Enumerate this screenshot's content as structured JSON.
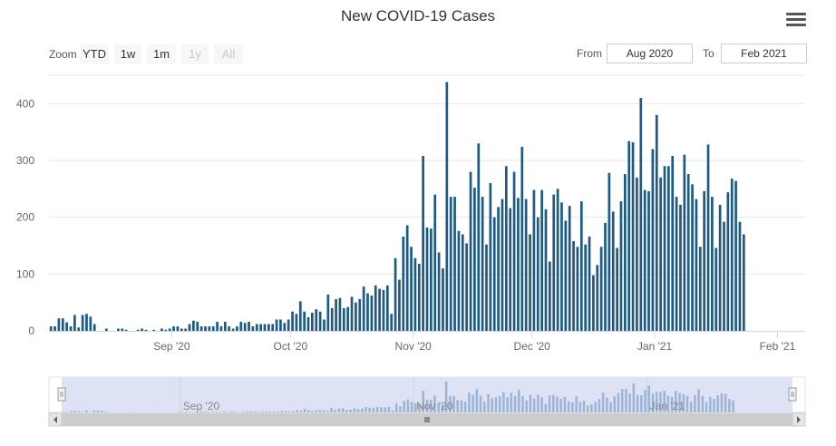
{
  "chart_data": {
    "type": "bar",
    "title": "New COVID-19 Cases",
    "x_start": "2020-08-01",
    "x_end": "2021-02-08",
    "ylim": [
      0,
      450
    ],
    "y_ticks": [
      0,
      100,
      200,
      300,
      400
    ],
    "x_ticks": [
      {
        "label": "Sep '20",
        "date": "2020-09-01"
      },
      {
        "label": "Oct '20",
        "date": "2020-10-01"
      },
      {
        "label": "Nov '20",
        "date": "2020-11-01"
      },
      {
        "label": "Dec '20",
        "date": "2020-12-01"
      },
      {
        "label": "Jan '21",
        "date": "2021-01-01"
      },
      {
        "label": "Feb '21",
        "date": "2021-02-01"
      }
    ],
    "grid": true,
    "series": [
      {
        "color": "#1f5a84",
        "values": [
          8,
          8,
          22,
          22,
          15,
          8,
          28,
          6,
          28,
          30,
          25,
          12,
          0,
          0,
          4,
          0,
          0,
          4,
          4,
          2,
          0,
          0,
          2,
          4,
          2,
          0,
          2,
          0,
          4,
          2,
          4,
          8,
          8,
          4,
          4,
          12,
          18,
          16,
          8,
          8,
          8,
          8,
          16,
          8,
          16,
          8,
          4,
          8,
          16,
          14,
          16,
          8,
          12,
          12,
          12,
          12,
          12,
          20,
          20,
          14,
          20,
          34,
          30,
          52,
          34,
          24,
          32,
          38,
          34,
          20,
          64,
          40,
          56,
          58,
          40,
          42,
          60,
          50,
          56,
          78,
          66,
          62,
          80,
          74,
          72,
          80,
          30,
          128,
          90,
          166,
          186,
          148,
          128,
          118,
          308,
          182,
          180,
          240,
          138,
          110,
          438,
          236,
          236,
          176,
          170,
          154,
          280,
          252,
          330,
          236,
          152,
          260,
          200,
          218,
          232,
          290,
          216,
          280,
          234,
          324,
          232,
          170,
          248,
          200,
          248,
          214,
          122,
          240,
          250,
          226,
          194,
          220,
          158,
          148,
          228,
          152,
          166,
          98,
          116,
          148,
          190,
          278,
          210,
          146,
          228,
          276,
          334,
          332,
          270,
          410,
          248,
          246,
          320,
          380,
          270,
          290,
          290,
          308,
          236,
          222,
          310,
          276,
          258,
          232,
          148,
          246,
          328,
          236,
          146,
          222,
          192,
          244,
          268,
          264,
          192,
          170
        ]
      }
    ]
  },
  "toolbar": {
    "zoom_label": "Zoom",
    "buttons": [
      {
        "label": "YTD",
        "enabled": true
      },
      {
        "label": "1w",
        "enabled": true
      },
      {
        "label": "1m",
        "enabled": true
      },
      {
        "label": "1y",
        "enabled": false
      },
      {
        "label": "All",
        "enabled": false
      }
    ],
    "from_label": "From",
    "from_value": "Aug 2020",
    "to_label": "To",
    "to_value": "Feb 2021"
  },
  "navigator": {
    "x_ticks": [
      "Sep '20",
      "Nov '20",
      "Jan '21"
    ]
  }
}
